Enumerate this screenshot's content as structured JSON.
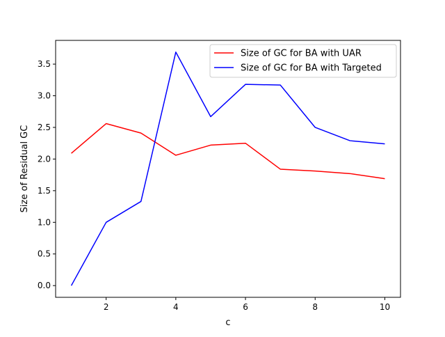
{
  "chart_data": {
    "type": "line",
    "title": "",
    "xlabel": "c",
    "ylabel": "Size of Residual GC",
    "xlim": [
      0.55,
      10.45
    ],
    "ylim": [
      -0.185,
      3.875
    ],
    "xticks": [
      2,
      4,
      6,
      8,
      10
    ],
    "xtick_labels": [
      "2",
      "4",
      "6",
      "8",
      "10"
    ],
    "yticks": [
      0.0,
      0.5,
      1.0,
      1.5,
      2.0,
      2.5,
      3.0,
      3.5
    ],
    "ytick_labels": [
      "0.0",
      "0.5",
      "1.0",
      "1.5",
      "2.0",
      "2.5",
      "3.0",
      "3.5"
    ],
    "grid": false,
    "legend_position": "top-right",
    "x": [
      1,
      2,
      3,
      4,
      5,
      6,
      7,
      8,
      9,
      10
    ],
    "series": [
      {
        "name": "Size of GC for BA with UAR",
        "color": "#ff0000",
        "values": [
          2.09,
          2.56,
          2.41,
          2.06,
          2.22,
          2.25,
          1.84,
          1.81,
          1.77,
          1.69
        ]
      },
      {
        "name": "Size of GC for BA with Targeted",
        "color": "#0000ff",
        "values": [
          0.0,
          1.0,
          1.33,
          3.69,
          2.67,
          3.18,
          3.17,
          2.5,
          2.29,
          2.24
        ]
      }
    ]
  }
}
